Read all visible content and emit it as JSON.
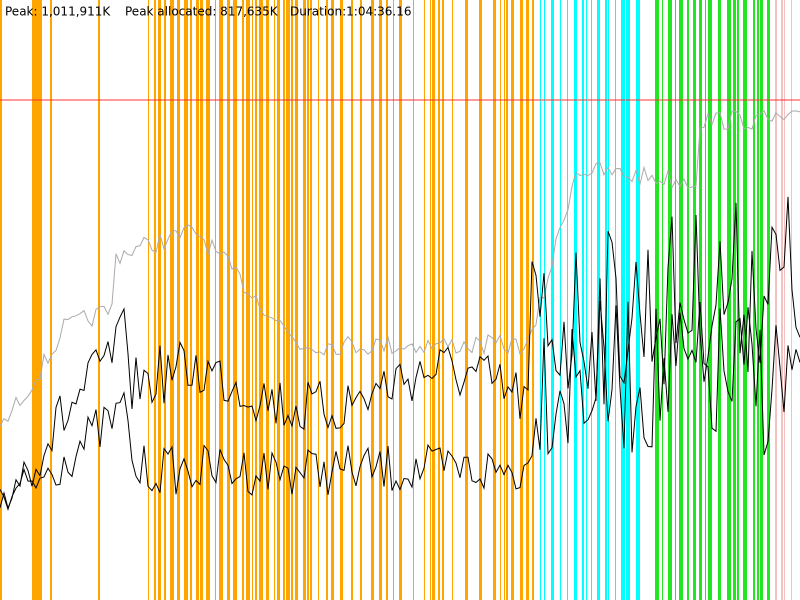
{
  "header": {
    "peak": "Peak: 1,011,911K",
    "peak_allocated": "Peak allocated: 817,635K",
    "duration": "Duration:1:04:36.16"
  }
}
